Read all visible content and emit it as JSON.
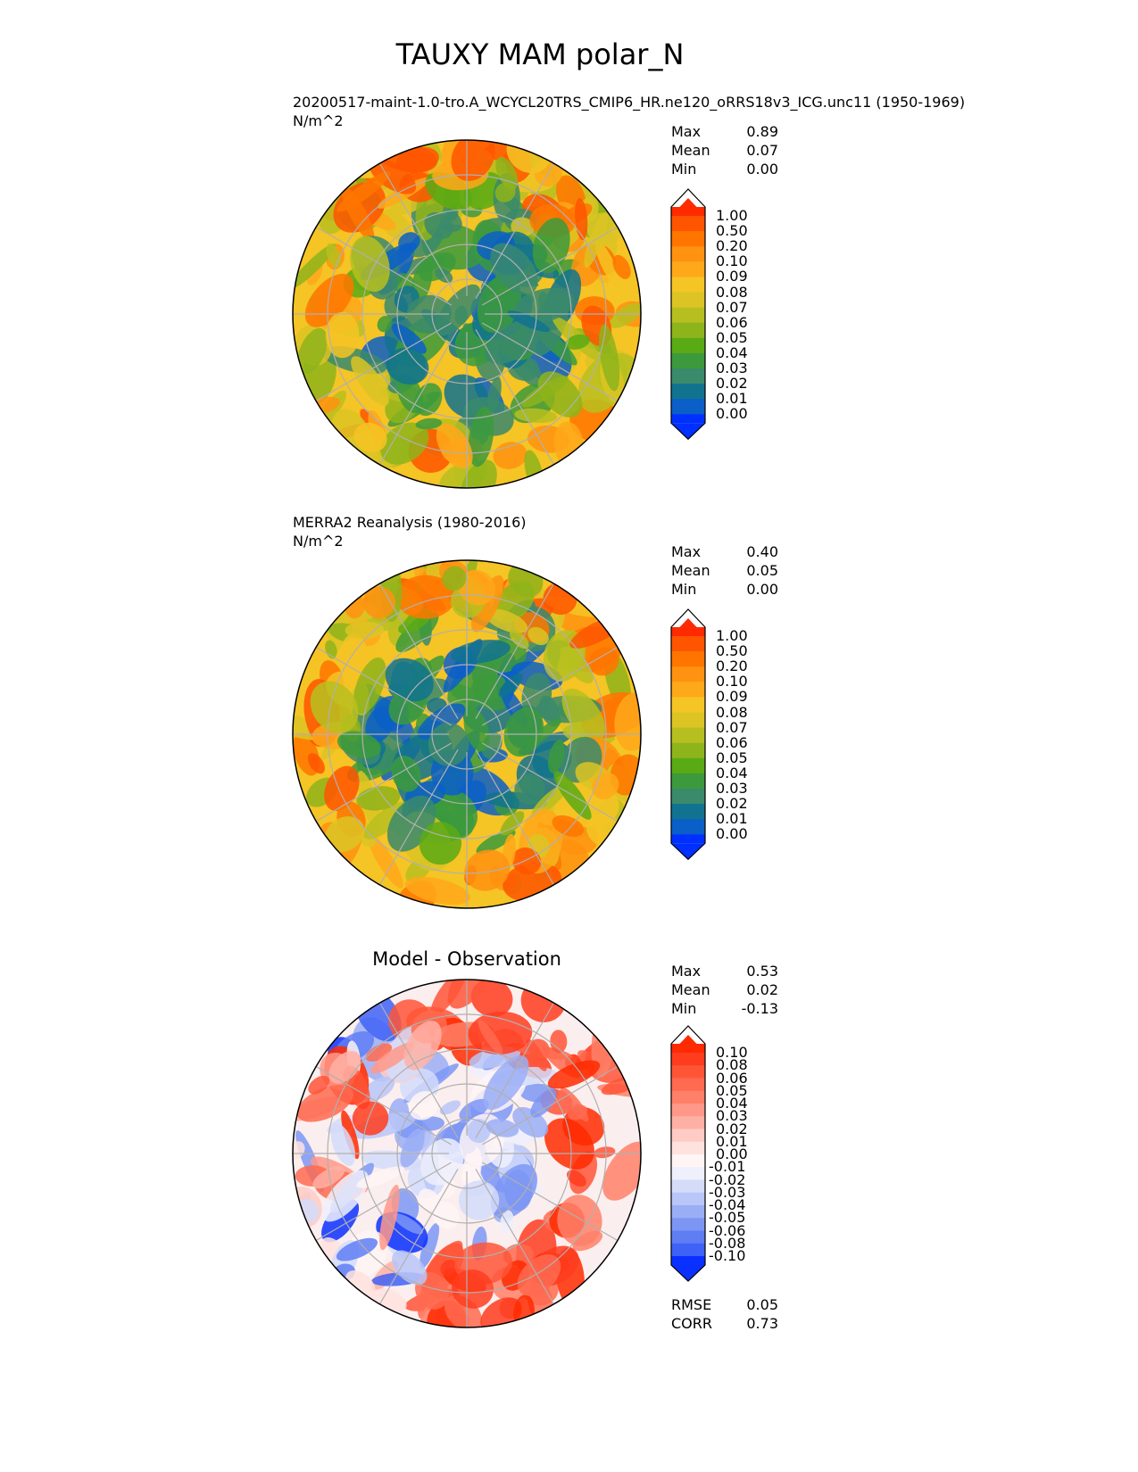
{
  "chart_data": {
    "type": "heatmap",
    "title": "TAUXY MAM polar_N",
    "projection": "north polar stereographic",
    "panels": [
      {
        "id": "model",
        "title": "20200517-maint-1.0-tro.A_WCYCL20TRS_CMIP6_HR.ne120_oRRS18v3_ICG.unc11 (1950-1969)",
        "units": "N/m^2",
        "stats": [
          {
            "label": "Max",
            "value": "0.89"
          },
          {
            "label": "Mean",
            "value": "0.07"
          },
          {
            "label": "Min",
            "value": "0.00"
          }
        ],
        "levels": [
          "1.00",
          "0.50",
          "0.20",
          "0.10",
          "0.09",
          "0.08",
          "0.07",
          "0.06",
          "0.05",
          "0.04",
          "0.03",
          "0.02",
          "0.01",
          "0.00"
        ],
        "colors": [
          "#ff2a00",
          "#ff5500",
          "#ff7500",
          "#ff9210",
          "#ffa81a",
          "#f5c425",
          "#dcc425",
          "#b7bf20",
          "#8eb41b",
          "#5aaa15",
          "#3c9a3c",
          "#3a8a6c",
          "#11738f",
          "#0a5fc8",
          "#0030ff"
        ]
      },
      {
        "id": "obs",
        "title": "MERRA2 Reanalysis (1980-2016)",
        "units": "N/m^2",
        "stats": [
          {
            "label": "Max",
            "value": "0.40"
          },
          {
            "label": "Mean",
            "value": "0.05"
          },
          {
            "label": "Min",
            "value": "0.00"
          }
        ],
        "levels": [
          "1.00",
          "0.50",
          "0.20",
          "0.10",
          "0.09",
          "0.08",
          "0.07",
          "0.06",
          "0.05",
          "0.04",
          "0.03",
          "0.02",
          "0.01",
          "0.00"
        ],
        "colors": [
          "#ff2a00",
          "#ff5500",
          "#ff7500",
          "#ff9210",
          "#ffa81a",
          "#f5c425",
          "#dcc425",
          "#b7bf20",
          "#8eb41b",
          "#5aaa15",
          "#3c9a3c",
          "#3a8a6c",
          "#11738f",
          "#0a5fc8",
          "#0030ff"
        ]
      },
      {
        "id": "diff",
        "title": "Model - Observation",
        "units": "",
        "stats": [
          {
            "label": "Max",
            "value": "0.53"
          },
          {
            "label": "Mean",
            "value": "0.02"
          },
          {
            "label": "Min",
            "value": "-0.13"
          }
        ],
        "levels": [
          "0.10",
          "0.08",
          "0.06",
          "0.05",
          "0.04",
          "0.03",
          "0.02",
          "0.01",
          "0.00",
          "-0.01",
          "-0.02",
          "-0.03",
          "-0.04",
          "-0.05",
          "-0.06",
          "-0.08",
          "-0.10"
        ],
        "colors": [
          "#ff2a00",
          "#ff3c1e",
          "#ff5537",
          "#ff6a50",
          "#ff8068",
          "#ff9888",
          "#ffb0a4",
          "#ffcbc4",
          "#ffe2de",
          "#fff5f4",
          "#eef0fc",
          "#d4dcfa",
          "#b8c6f8",
          "#9aaef6",
          "#7d96f4",
          "#5f7ef4",
          "#3f62f6",
          "#0a30ff"
        ],
        "footer_stats": [
          {
            "label": "RMSE",
            "value": "0.05"
          },
          {
            "label": "CORR",
            "value": "0.73"
          }
        ]
      }
    ]
  }
}
